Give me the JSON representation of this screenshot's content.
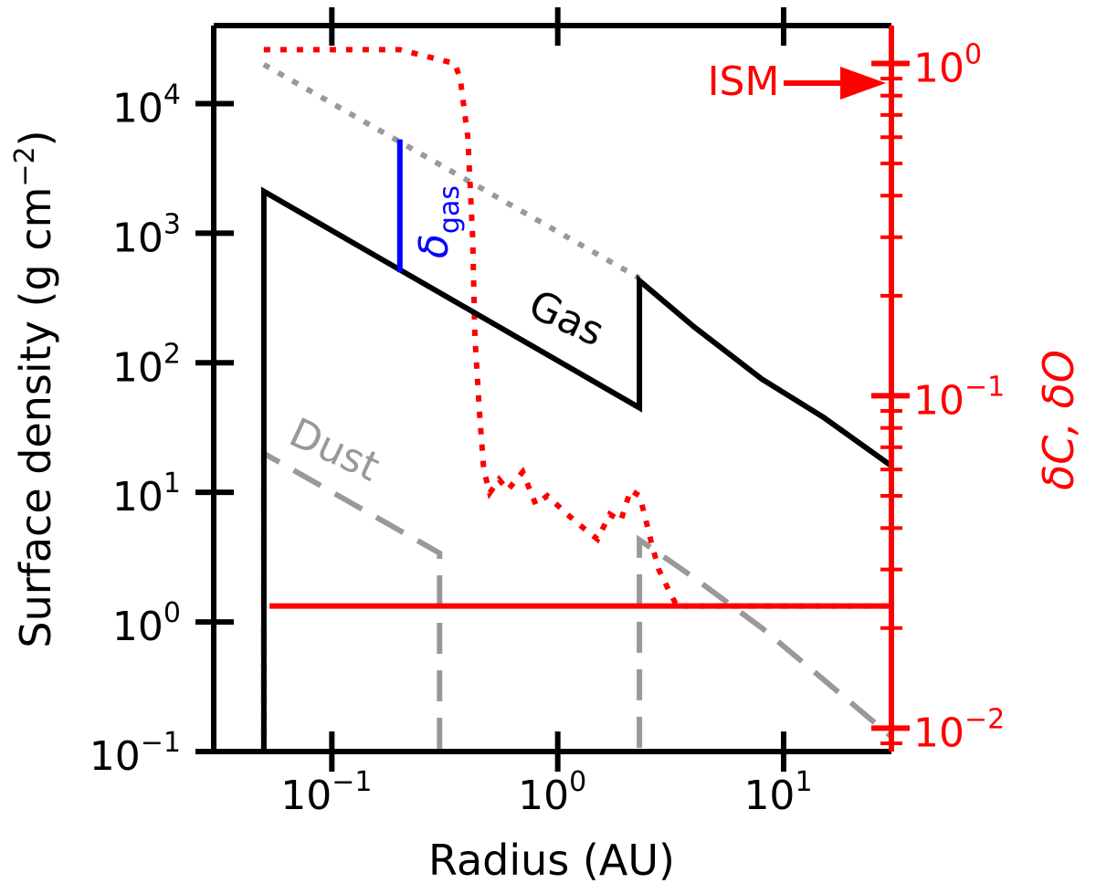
{
  "chart_data": {
    "type": "line",
    "xlabel": "Radius (AU)",
    "ylabel": "Surface density (g cm",
    "ylabel_exp": "−2",
    "ylabel_close": ")",
    "y2label": "δC, δO",
    "x_scale": "log",
    "y_scale": "log",
    "y2_scale": "log",
    "xlim": [
      0.03,
      30
    ],
    "ylim": [
      0.1,
      40000
    ],
    "y2lim": [
      0.0085,
      1.3
    ],
    "grid": false,
    "x_ticks": [
      {
        "value": 0.1,
        "base": "10",
        "exp": "−1"
      },
      {
        "value": 1,
        "base": "10",
        "exp": "0"
      },
      {
        "value": 10,
        "base": "10",
        "exp": "1"
      }
    ],
    "y_ticks": [
      {
        "value": 0.1,
        "base": "10",
        "exp": "−1"
      },
      {
        "value": 1,
        "base": "10",
        "exp": "0"
      },
      {
        "value": 10,
        "base": "10",
        "exp": "1"
      },
      {
        "value": 100,
        "base": "10",
        "exp": "2"
      },
      {
        "value": 1000,
        "base": "10",
        "exp": "3"
      },
      {
        "value": 10000,
        "base": "10",
        "exp": "4"
      }
    ],
    "y2_ticks": [
      {
        "value": 0.01,
        "base": "10",
        "exp": "−2"
      },
      {
        "value": 0.1,
        "base": "10",
        "exp": "−1"
      },
      {
        "value": 1,
        "base": "10",
        "exp": "0"
      }
    ],
    "series": [
      {
        "name": "Gas",
        "axis": "left",
        "style": "solid",
        "color": "#000000",
        "x": [
          0.05,
          0.05,
          2.3,
          2.3,
          4,
          8,
          15,
          30
        ],
        "y": [
          0.1,
          2100,
          45,
          430,
          190,
          75,
          38,
          16
        ]
      },
      {
        "name": "Dust",
        "axis": "left",
        "style": "dashed",
        "color": "#999999",
        "x": [
          0.05,
          0.05,
          0.3,
          0.3,
          2.3,
          2.3,
          4,
          8,
          15,
          30
        ],
        "y": [
          0.1,
          20,
          3.4,
          0.1,
          0.1,
          4.3,
          2.2,
          0.9,
          0.36,
          0.13
        ]
      },
      {
        "axis": "left",
        "style": "dotted",
        "color": "#999999",
        "x": [
          0.05,
          2.3
        ],
        "y": [
          20000,
          450
        ]
      },
      {
        "axis": "left",
        "style": "dotted",
        "color": "#000000",
        "x": [
          0.05,
          0.05
        ],
        "y": [
          0.1,
          1
        ]
      },
      {
        "axis": "right",
        "style": "solid",
        "color": "#ff0000",
        "x": [
          0.053,
          30
        ],
        "y": [
          0.0233,
          0.0233
        ]
      },
      {
        "axis": "right",
        "style": "dotted",
        "color": "#ff0000",
        "x": [
          0.05,
          0.2,
          0.35,
          0.37,
          0.4,
          0.42,
          0.43,
          0.45,
          0.47,
          0.5,
          0.55,
          0.6,
          0.7,
          0.8,
          0.9,
          1.1,
          1.3,
          1.5,
          1.7,
          1.9,
          2.1,
          2.3,
          2.4,
          2.6,
          2.8,
          3.1,
          3.4,
          3.6,
          30
        ],
        "y": [
          1.1,
          1.1,
          1.0,
          0.9,
          0.6,
          0.3,
          0.15,
          0.09,
          0.06,
          0.051,
          0.056,
          0.052,
          0.059,
          0.047,
          0.05,
          0.044,
          0.04,
          0.037,
          0.044,
          0.042,
          0.052,
          0.05,
          0.045,
          0.036,
          0.03,
          0.026,
          0.023,
          0.0233,
          0.0233
        ]
      },
      {
        "name": "δgas",
        "axis": "left",
        "style": "solid",
        "color": "#0000ff",
        "x": [
          0.2,
          0.2
        ],
        "y": [
          5300,
          500
        ]
      }
    ],
    "annotations": [
      {
        "text": "Gas",
        "color": "#000000"
      },
      {
        "text": "Dust",
        "color": "#999999"
      },
      {
        "text": "δ",
        "sub": "gas",
        "color": "#0000ff"
      },
      {
        "text": "ISM",
        "color": "#ff0000"
      }
    ],
    "colors": {
      "left_axis": "#000000",
      "right_axis": "#ff0000"
    }
  }
}
